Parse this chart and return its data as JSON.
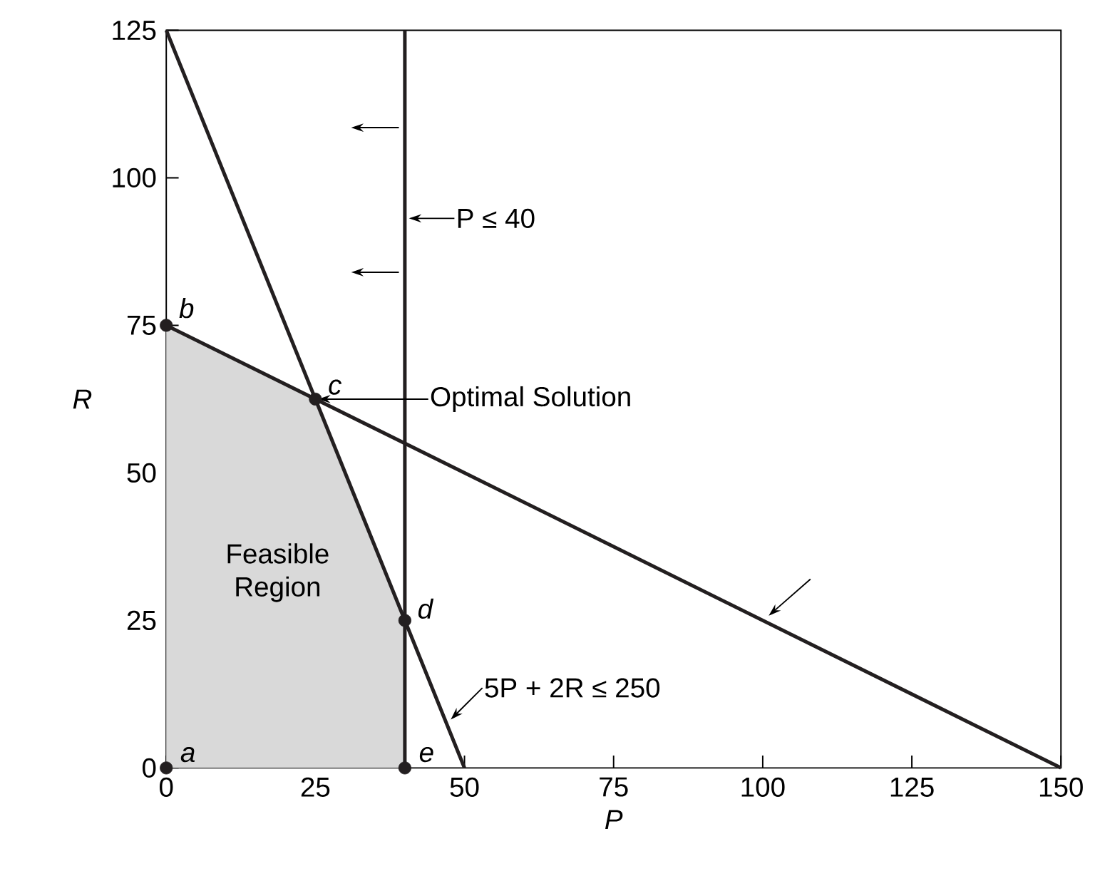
{
  "chart_data": {
    "type": "line",
    "xlabel": "P",
    "ylabel": "R",
    "xlim": [
      0,
      150
    ],
    "ylim": [
      0,
      125
    ],
    "xticks": [
      0,
      25,
      50,
      75,
      100,
      125,
      150
    ],
    "yticks": [
      0,
      25,
      50,
      75,
      100,
      125
    ],
    "series": [
      {
        "name": "Feasible Region",
        "type": "area",
        "color": "#d9d9d9",
        "x": [
          0,
          25,
          40
        ],
        "values": [
          75,
          62.5,
          25
        ]
      },
      {
        "color": "#231f20",
        "x": [
          0,
          50
        ],
        "values": [
          125,
          0
        ]
      },
      {
        "color": "#231f20",
        "x": [
          0,
          150
        ],
        "values": [
          75,
          0
        ]
      },
      {
        "type": "scatter",
        "color": "#231f20",
        "marker": "circle",
        "x": [
          0,
          0,
          25,
          40,
          40
        ],
        "values": [
          0,
          75,
          62.5,
          25,
          0
        ]
      }
    ],
    "ref_lines": [
      {
        "axis": "x",
        "value": 40,
        "label": "P ≤ 40",
        "color": "#231f20"
      }
    ],
    "annotations": [
      {
        "text": "a",
        "x": 0,
        "y": 0
      },
      {
        "text": "b",
        "x": 0,
        "y": 75
      },
      {
        "text": "c",
        "x": 25,
        "y": 62.5
      },
      {
        "text": "d",
        "x": 40,
        "y": 25
      },
      {
        "text": "e",
        "x": 40,
        "y": 0
      },
      {
        "text": "Optimal Solution",
        "x": 25,
        "y": 62.5
      },
      {
        "text": "5P + 2R ≤ 250",
        "x": 47,
        "y": 7.5
      }
    ]
  }
}
